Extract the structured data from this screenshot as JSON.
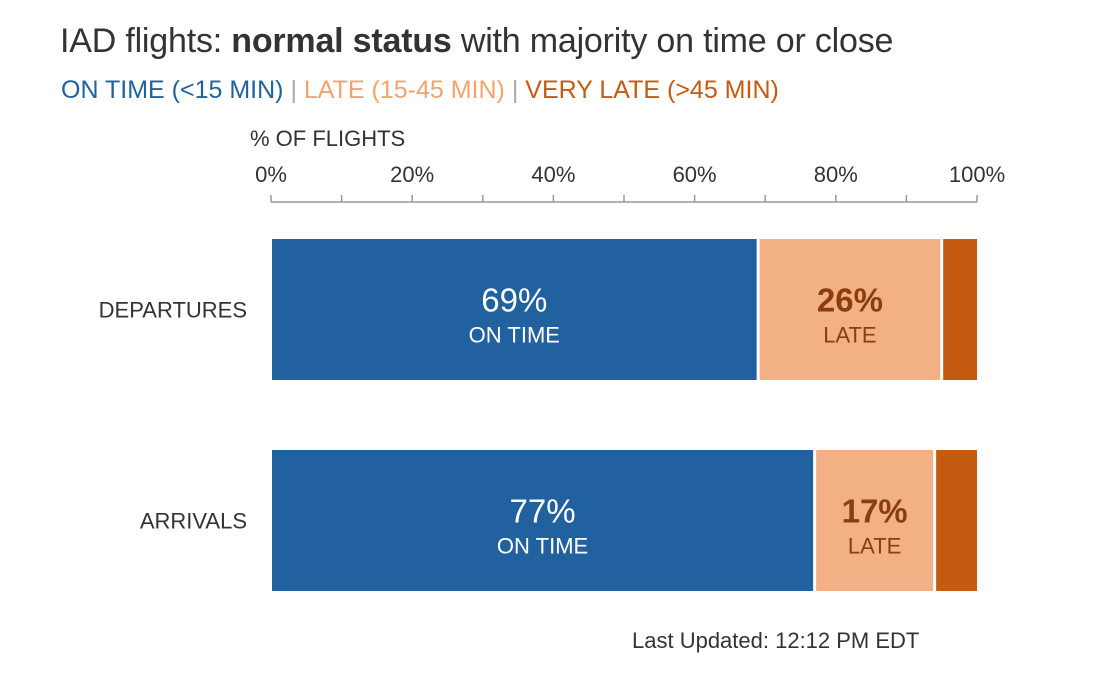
{
  "header": {
    "title_pre": "IAD flights: ",
    "title_bold": "normal status",
    "title_post": " with majority on time or close"
  },
  "legend": {
    "on_time": "ON TIME (<15 MIN)",
    "late": "LATE (15-45 MIN)",
    "very_late": "VERY LATE (>45 MIN)",
    "separator": " | "
  },
  "colors": {
    "on_time": "#2161a0",
    "late": "#f3b084",
    "very_late": "#c55a11",
    "late_label": "#8b3e0d",
    "axis": "#999999",
    "text": "#333333"
  },
  "chart_data": {
    "type": "bar",
    "orientation": "horizontal",
    "stacked": true,
    "xlabel": "% OF FLIGHTS",
    "xlim": [
      0,
      100
    ],
    "x_ticks": [
      0,
      20,
      40,
      60,
      80,
      100
    ],
    "x_tick_labels": [
      "0%",
      "20%",
      "40%",
      "60%",
      "80%",
      "100%"
    ],
    "categories": [
      "DEPARTURES",
      "ARRIVALS"
    ],
    "series": [
      {
        "name": "ON TIME (<15 MIN)",
        "values": [
          69,
          77
        ],
        "color_key": "on_time",
        "value_labels": [
          "69%",
          "77%"
        ],
        "sub_label": "ON TIME"
      },
      {
        "name": "LATE (15-45 MIN)",
        "values": [
          26,
          17
        ],
        "color_key": "late",
        "value_labels": [
          "26%",
          "17%"
        ],
        "sub_label": "LATE"
      },
      {
        "name": "VERY LATE (>45 MIN)",
        "values": [
          5,
          6
        ],
        "color_key": "very_late"
      }
    ]
  },
  "footer": {
    "last_updated": "Last Updated: 12:12 PM EDT"
  }
}
